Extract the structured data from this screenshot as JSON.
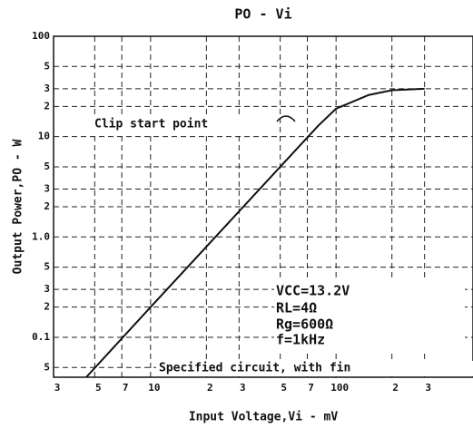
{
  "chart_data": {
    "type": "line",
    "title": "PO - Vi",
    "x_label": "Input Voltage,Vi - mV",
    "y_label": "Output Power,PO - W",
    "xscale": "log",
    "yscale": "log",
    "grid": true,
    "xlim": [
      3,
      500
    ],
    "ylim": [
      0.04,
      100
    ],
    "xticks": [
      3,
      5,
      7,
      10,
      {
        "value": 20,
        "label": "2"
      },
      {
        "value": 30,
        "label": "3"
      },
      {
        "value": 50,
        "label": "5"
      },
      {
        "value": 70,
        "label": "7"
      },
      100,
      {
        "value": 200,
        "label": "2"
      },
      {
        "value": 300,
        "label": "3"
      }
    ],
    "yticks": [
      100,
      {
        "value": 50,
        "label": "5"
      },
      {
        "value": 30,
        "label": "3"
      },
      {
        "value": 20,
        "label": "2"
      },
      10,
      5,
      3,
      2,
      {
        "value": 1,
        "label": "1.0"
      },
      {
        "value": 0.5,
        "label": "5"
      },
      {
        "value": 0.3,
        "label": "3"
      },
      {
        "value": 0.2,
        "label": "2"
      },
      0.1,
      {
        "value": 0.05,
        "label": "5"
      }
    ],
    "x": [
      4.5,
      10,
      20,
      50,
      80,
      100,
      150,
      200,
      300
    ],
    "series": [
      {
        "color": "#111111",
        "values": [
          0.04,
          0.2,
          0.8,
          5,
          12.8,
          19,
          26,
          29,
          30
        ]
      }
    ],
    "annotations": [
      "Clip start point",
      "VCC=13.2V",
      "RL=4Ω",
      "Rg=600Ω",
      "f=1kHz",
      "Specified circuit, with fin"
    ]
  }
}
